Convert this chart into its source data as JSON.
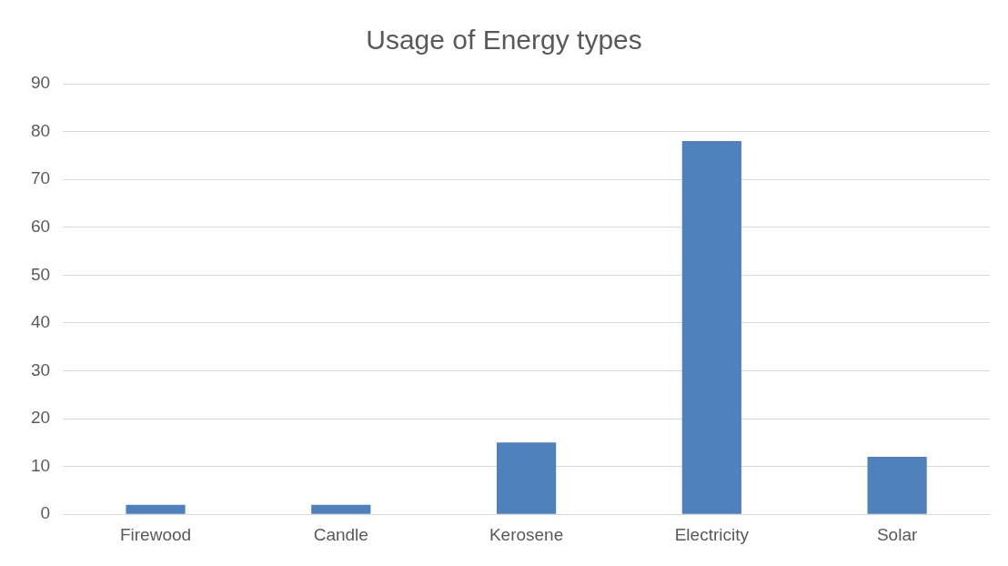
{
  "chart_data": {
    "type": "bar",
    "title": "Usage of Energy types",
    "categories": [
      "Firewood",
      "Candle",
      "Kerosene",
      "Electricity",
      "Solar"
    ],
    "values": [
      2,
      2,
      15,
      78,
      12
    ],
    "color": "#4f81bd",
    "ylim": [
      0,
      90
    ],
    "yticks": [
      0,
      10,
      20,
      30,
      40,
      50,
      60,
      70,
      80,
      90
    ],
    "grid": "y",
    "legend": false
  }
}
